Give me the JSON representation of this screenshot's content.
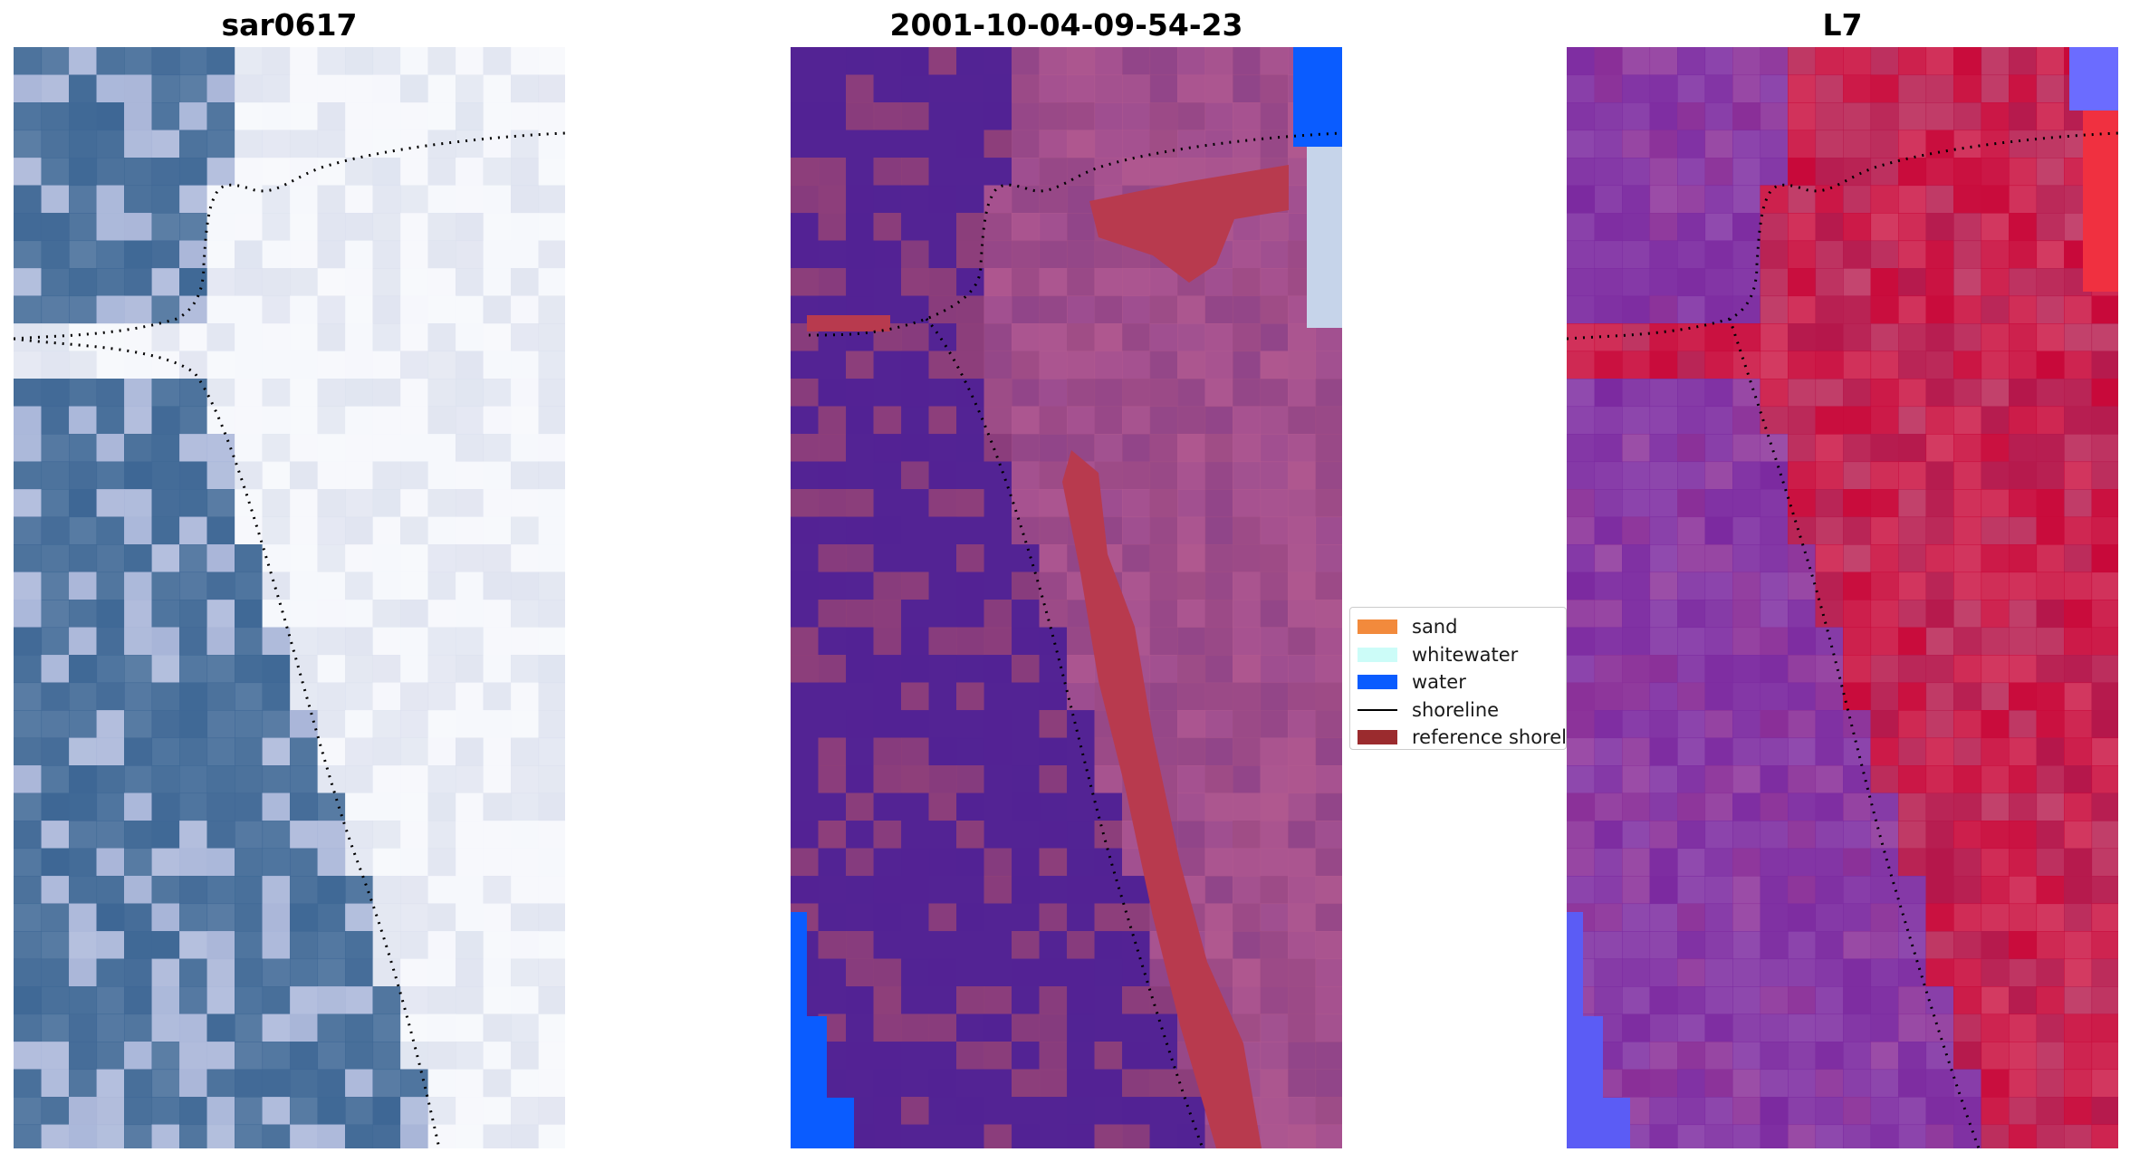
{
  "panels": [
    {
      "title": "sar0617"
    },
    {
      "title": "2001-10-04-09-54-23"
    },
    {
      "title": "L7"
    }
  ],
  "legend": {
    "items": [
      {
        "label": "sand",
        "color": "#f28a3c",
        "kind": "patch"
      },
      {
        "label": "whitewater",
        "color": "#ccfcf8",
        "kind": "patch"
      },
      {
        "label": "water",
        "color": "#0a5cff",
        "kind": "patch"
      },
      {
        "label": "shoreline",
        "color": "#000000",
        "kind": "line"
      },
      {
        "label": "reference shoreline",
        "color": "#9b2b2e",
        "kind": "patch"
      }
    ]
  },
  "colors": {
    "rgb_water": "#3e6795",
    "rgb_sand": "#dbe0ee",
    "class_background": "#532394",
    "class_land": "#a04d86",
    "class_reference_shoreline": "#b83a4e",
    "class_water": "#0a5cff",
    "mndwi_water": "#7c2aa0",
    "mndwi_land": "#c8093a"
  }
}
